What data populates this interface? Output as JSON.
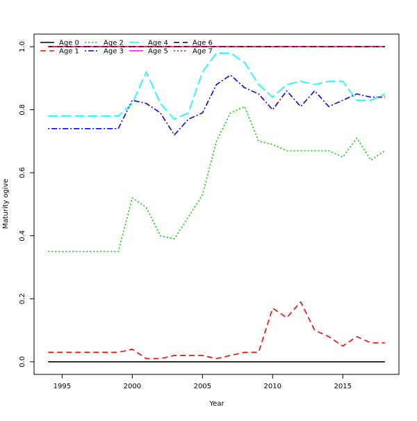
{
  "chart_data": {
    "type": "line",
    "title": "",
    "xlabel": "Year",
    "ylabel": "Maturity ogive",
    "xlim": [
      1993,
      2019
    ],
    "ylim": [
      -0.04,
      1.04
    ],
    "xticks": [
      1995,
      2000,
      2005,
      2010,
      2015
    ],
    "yticks": [
      0.0,
      0.2,
      0.4,
      0.6,
      0.8,
      1.0
    ],
    "xtick_labels": [
      "1995",
      "2000",
      "2005",
      "2010",
      "2015"
    ],
    "ytick_labels": [
      "0.0",
      "0.2",
      "0.4",
      "0.6",
      "0.8",
      "1.0"
    ],
    "grid": false,
    "legend_position": "top-left",
    "x": [
      1994,
      1995,
      1996,
      1997,
      1998,
      1999,
      2000,
      2001,
      2002,
      2003,
      2004,
      2005,
      2006,
      2007,
      2008,
      2009,
      2010,
      2011,
      2012,
      2013,
      2014,
      2015,
      2016,
      2017,
      2018
    ],
    "series": [
      {
        "name": "Age 0",
        "color": "#000000",
        "dash": "solid",
        "values": [
          0,
          0,
          0,
          0,
          0,
          0,
          0,
          0,
          0,
          0,
          0,
          0,
          0,
          0,
          0,
          0,
          0,
          0,
          0,
          0,
          0,
          0,
          0,
          0,
          0
        ]
      },
      {
        "name": "Age 1",
        "color": "#ff0000",
        "dash": "dashed",
        "values": [
          0.03,
          0.03,
          0.03,
          0.03,
          0.03,
          0.03,
          0.04,
          0.01,
          0.01,
          0.02,
          0.02,
          0.02,
          0.01,
          0.02,
          0.03,
          0.03,
          0.17,
          0.14,
          0.19,
          0.1,
          0.08,
          0.05,
          0.08,
          0.06,
          0.06
        ]
      },
      {
        "name": "Age 2",
        "color": "#00cc00",
        "dash": "dotted",
        "values": [
          0.35,
          0.35,
          0.35,
          0.35,
          0.35,
          0.35,
          0.52,
          0.49,
          0.4,
          0.39,
          0.46,
          0.53,
          0.7,
          0.79,
          0.81,
          0.7,
          0.69,
          0.67,
          0.67,
          0.67,
          0.67,
          0.65,
          0.71,
          0.64,
          0.67
        ]
      },
      {
        "name": "Age 3",
        "color": "#0000ff",
        "dash": "dotdash",
        "values": [
          0.74,
          0.74,
          0.74,
          0.74,
          0.74,
          0.74,
          0.83,
          0.82,
          0.79,
          0.72,
          0.77,
          0.79,
          0.88,
          0.91,
          0.87,
          0.85,
          0.8,
          0.86,
          0.81,
          0.86,
          0.81,
          0.83,
          0.85,
          0.84,
          0.84
        ]
      },
      {
        "name": "Age 4",
        "color": "#00ffff",
        "dash": "longdash",
        "values": [
          0.78,
          0.78,
          0.78,
          0.78,
          0.78,
          0.78,
          0.82,
          0.92,
          0.82,
          0.77,
          0.79,
          0.92,
          0.98,
          0.98,
          0.95,
          0.88,
          0.84,
          0.88,
          0.89,
          0.88,
          0.89,
          0.89,
          0.83,
          0.83,
          0.85
        ]
      },
      {
        "name": "Age 5",
        "color": "#ff00ff",
        "dash": "solid",
        "values": [
          1,
          1,
          1,
          1,
          1,
          1,
          1,
          1,
          1,
          1,
          1,
          1,
          1,
          1,
          1,
          1,
          1,
          1,
          1,
          1,
          1,
          1,
          1,
          1,
          1
        ]
      },
      {
        "name": "Age 6",
        "color": "#000000",
        "dash": "dashed",
        "values": [
          1,
          1,
          1,
          1,
          1,
          1,
          1,
          1,
          1,
          1,
          1,
          1,
          1,
          1,
          1,
          1,
          1,
          1,
          1,
          1,
          1,
          1,
          1,
          1,
          1
        ]
      },
      {
        "name": "Age 7",
        "color": "#ff0000",
        "dash": "dotted",
        "values": [
          1,
          1,
          1,
          1,
          1,
          1,
          1,
          1,
          1,
          1,
          1,
          1,
          1,
          1,
          1,
          1,
          1,
          1,
          1,
          1,
          1,
          1,
          1,
          1,
          1
        ]
      }
    ]
  }
}
